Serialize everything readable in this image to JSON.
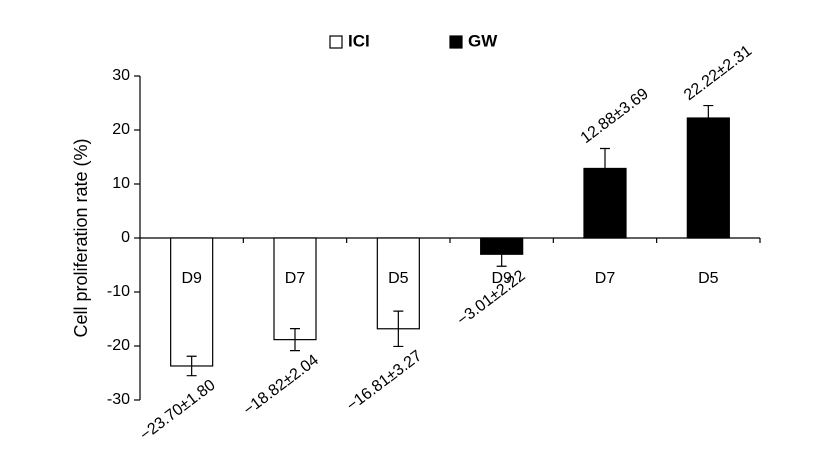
{
  "chart_data": {
    "type": "bar",
    "y_label": "Cell proliferation rate (%)",
    "categories": [
      "D9",
      "D7",
      "D5",
      "D9",
      "D7",
      "D5"
    ],
    "series": [
      {
        "name": "ICI",
        "color": "#ffffff",
        "values": [
          -23.7,
          -18.82,
          -16.81,
          null,
          null,
          null
        ],
        "errors": [
          1.8,
          2.04,
          3.27,
          null,
          null,
          null
        ],
        "value_labels": [
          "−23.70±1.80",
          "−18.82±2.04",
          "−16.81±3.27",
          null,
          null,
          null
        ]
      },
      {
        "name": "GW",
        "color": "#000000",
        "values": [
          null,
          null,
          null,
          -3.01,
          12.88,
          22.22
        ],
        "errors": [
          null,
          null,
          null,
          2.22,
          3.69,
          2.31
        ],
        "value_labels": [
          null,
          null,
          null,
          "−3.01±2.22",
          "12.88±3.69",
          "22.22±2.31"
        ]
      }
    ],
    "ylim": [
      -30,
      30
    ],
    "yticks": [
      -30,
      -20,
      -10,
      0,
      10,
      20,
      30
    ]
  }
}
